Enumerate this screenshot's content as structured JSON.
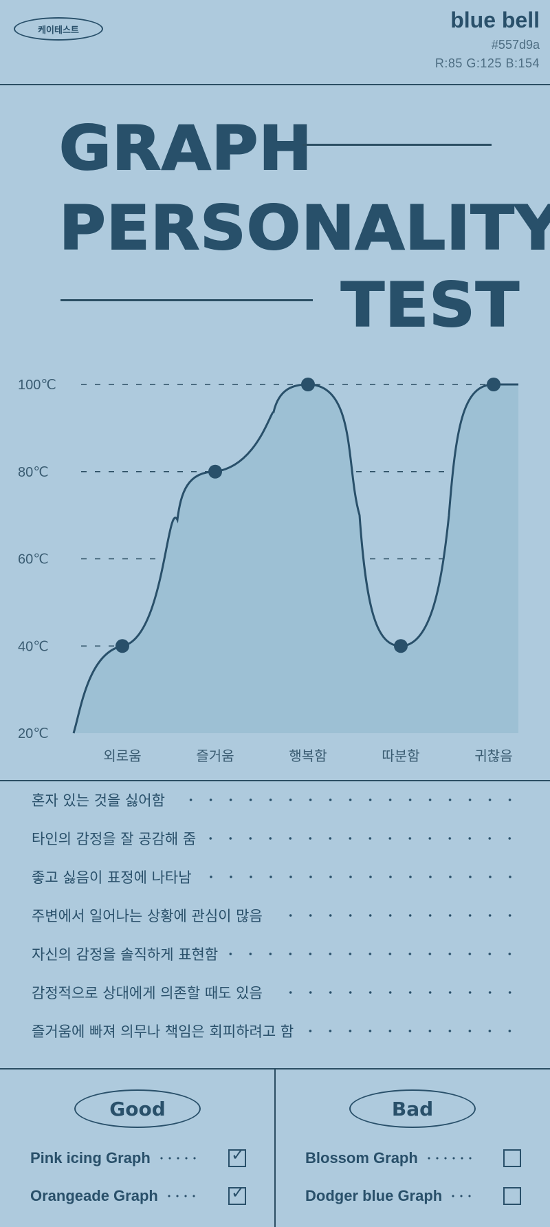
{
  "header": {
    "badge": "케이테스트",
    "brand_name": "blue bell",
    "hex": "#557d9a",
    "rgb": "R:85  G:125  B:154"
  },
  "title": {
    "line1": "GRAPH",
    "line2": "PERSONALITY",
    "line3": "TEST"
  },
  "colors": {
    "background": "#aecadd",
    "ink": "#29506a",
    "area_fill": "#9dc0d4"
  },
  "chart_data": {
    "type": "area",
    "categories": [
      "외로움",
      "즐거움",
      "행복함",
      "따분함",
      "귀찮음"
    ],
    "values": [
      40,
      80,
      100,
      40,
      100
    ],
    "y_ticks": [
      "100℃",
      "80℃",
      "60℃",
      "40℃",
      "20℃"
    ],
    "ylim": [
      20,
      100
    ],
    "grid": "dashed horizontal",
    "smooth": true
  },
  "traits": [
    "혼자 있는 것을 싫어함",
    "타인의 감정을 잘 공감해 줌",
    "좋고 싫음이 표정에 나타남",
    "주변에서 일어나는 상황에 관심이 많음",
    "자신의 감정을 솔직하게 표현함",
    "감정적으로 상대에게 의존할 때도 있음",
    "즐거움에 빠져 의무나 책임은 회피하려고 함"
  ],
  "good": {
    "title": "Good",
    "items": [
      {
        "label": "Pink icing Graph",
        "checked": true
      },
      {
        "label": "Orangeade Graph",
        "checked": true
      }
    ]
  },
  "bad": {
    "title": "Bad",
    "items": [
      {
        "label": "Blossom Graph",
        "checked": false
      },
      {
        "label": "Dodger blue Graph",
        "checked": false
      }
    ]
  }
}
